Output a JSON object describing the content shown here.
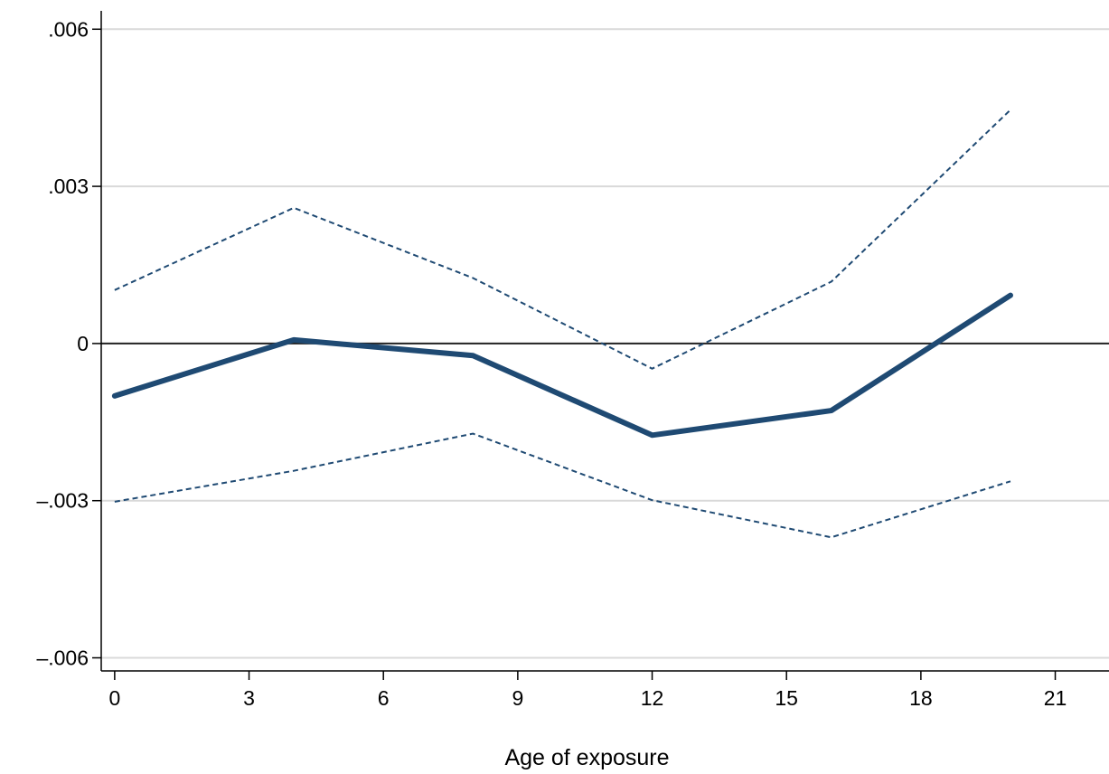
{
  "chart_data": {
    "type": "line",
    "title": "",
    "xlabel": "Age of exposure",
    "ylabel": "",
    "xlim": [
      -0.3,
      22.2
    ],
    "ylim": [
      -0.00625,
      0.00635
    ],
    "x_ticks": [
      0,
      3,
      6,
      9,
      12,
      15,
      18,
      21
    ],
    "x_tick_labels": [
      "0",
      "3",
      "6",
      "9",
      "12",
      "15",
      "18",
      "21"
    ],
    "y_ticks": [
      -0.006,
      -0.003,
      0,
      0.003,
      0.006
    ],
    "y_tick_labels": [
      "–.006",
      "–.003",
      "0",
      ".003",
      ".006"
    ],
    "grid": true,
    "reference_line_y": 0,
    "x": [
      0,
      4,
      8,
      12,
      16,
      20
    ],
    "series": [
      {
        "role": "estimate",
        "values": [
          -0.001,
          7e-05,
          -0.00023,
          -0.00175,
          -0.00128,
          0.00092
        ],
        "color": "#1f4a73",
        "style": "solid"
      },
      {
        "role": "ci_upper",
        "values": [
          0.00102,
          0.00259,
          0.00125,
          -0.00048,
          0.00118,
          0.00446
        ],
        "color": "#1f4a73",
        "style": "dashed"
      },
      {
        "role": "ci_lower",
        "values": [
          -0.00302,
          -0.00243,
          -0.00172,
          -0.00299,
          -0.0037,
          -0.00263
        ],
        "color": "#1f4a73",
        "style": "dashed"
      }
    ]
  }
}
